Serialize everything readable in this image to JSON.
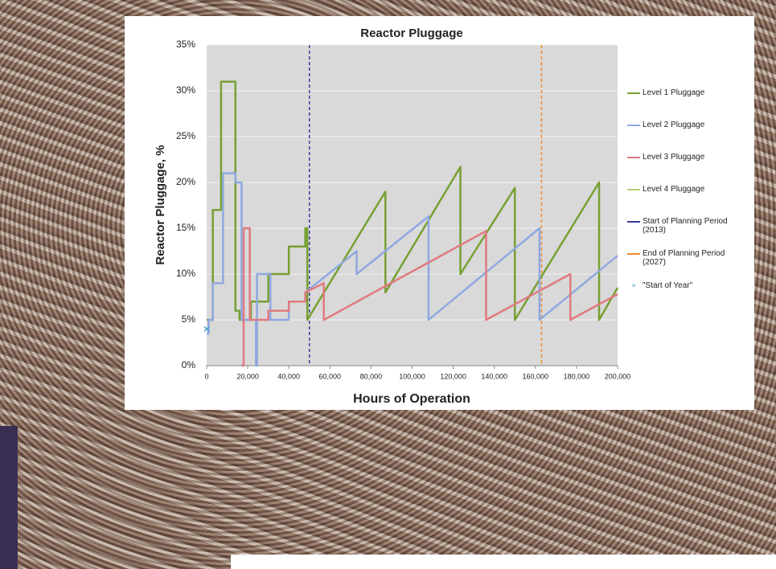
{
  "chart_data": {
    "type": "line",
    "title": "Reactor Pluggage",
    "x_label": "Hours of Operation",
    "y_label": "Reactor Pluggage, %",
    "xlim": [
      0,
      200000
    ],
    "xticks": [
      0,
      {
        "value": 20000,
        "label": "20,000"
      },
      {
        "value": 40000,
        "label": "40,000"
      },
      {
        "value": 60000,
        "label": "60,000"
      },
      {
        "value": 80000,
        "label": "80,000"
      },
      {
        "value": 100000,
        "label": "100,000"
      },
      {
        "value": 120000,
        "label": "120,000"
      },
      {
        "value": 140000,
        "label": "140,000"
      },
      {
        "value": 160000,
        "label": "160,000"
      },
      {
        "value": 180000,
        "label": "180,000"
      },
      {
        "value": 200000,
        "label": "200,000"
      }
    ],
    "ylim": [
      0,
      35
    ],
    "yticks": [
      {
        "value": 0,
        "label": "0%"
      },
      {
        "value": 5,
        "label": "5%"
      },
      {
        "value": 10,
        "label": "10%"
      },
      {
        "value": 15,
        "label": "15%"
      },
      {
        "value": 20,
        "label": "20%"
      },
      {
        "value": 25,
        "label": "25%"
      },
      {
        "value": 30,
        "label": "30%"
      },
      {
        "value": 35,
        "label": "35%"
      }
    ],
    "grid": true,
    "legend": "right",
    "series": [
      {
        "name": "Level 1 Pluggage",
        "color": "#77a033",
        "x": [
          0,
          3000,
          3000,
          7000,
          7000,
          14000,
          14000,
          16000,
          16000,
          21500,
          21500,
          30000,
          30000,
          40000,
          40000,
          48000,
          48000,
          49000,
          49000,
          87000,
          87000,
          123500,
          123500,
          150000,
          150000,
          191000,
          191000,
          200000
        ],
        "values": [
          5,
          5,
          17,
          17,
          31,
          31,
          6,
          6,
          5,
          5,
          7,
          7,
          10,
          10,
          13,
          13,
          15,
          15,
          5,
          19,
          8,
          21.7,
          10,
          19.4,
          5,
          20,
          5,
          8.5
        ]
      },
      {
        "name": "Level 2 Pluggage",
        "color": "#8fa8e0",
        "x": [
          0,
          1000,
          1000,
          3000,
          3000,
          8000,
          8000,
          14000,
          14000,
          17000,
          17000,
          24000,
          24000,
          24500,
          24500,
          31000,
          31000,
          40000,
          40000,
          48000,
          48000,
          73000,
          73000,
          108000,
          108000,
          162000,
          162000,
          200000
        ],
        "values": [
          3.5,
          3.5,
          5,
          5,
          9,
          9,
          21,
          21,
          20,
          20,
          5,
          5,
          0,
          0,
          10,
          10,
          5,
          5,
          7,
          7,
          8,
          12.5,
          10,
          16.3,
          5,
          15,
          5,
          12
        ]
      },
      {
        "name": "Level 3 Pluggage",
        "color": "#e07a80",
        "x": [
          17000,
          18000,
          18000,
          21000,
          21000,
          30000,
          30000,
          40000,
          40000,
          48000,
          48000,
          57000,
          57000,
          136000,
          136000,
          177000,
          177000,
          200000
        ],
        "values": [
          0,
          0,
          15,
          15,
          5,
          5,
          6,
          6,
          7,
          7,
          8,
          9,
          5,
          14.7,
          5,
          10,
          5,
          7.8
        ]
      },
      {
        "name": "Level 4 Pluggage",
        "color": "#b5d178",
        "x": [],
        "values": []
      },
      {
        "name": "\"Start of Year\"",
        "color": "#4aa3c8",
        "marker": "x",
        "x": [
          0
        ],
        "values": [
          4
        ]
      }
    ],
    "reference_lines": [
      {
        "name": "Start of Planning Period (2013)",
        "color": "#3a3a9a",
        "x": 50000
      },
      {
        "name": "End of Planning Period (2027)",
        "color": "#f08a30",
        "x": 163000
      }
    ]
  }
}
